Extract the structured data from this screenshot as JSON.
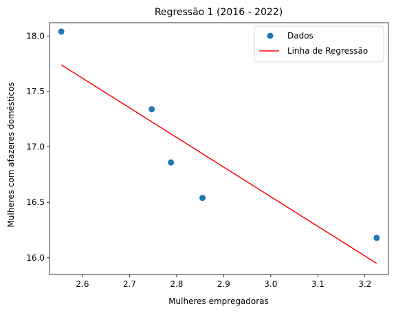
{
  "chart_data": {
    "type": "scatter",
    "title": "Regressão 1 (2016 - 2022)",
    "xlabel": "Mulheres empregadoras",
    "ylabel": "Mulheres com afazeres domésticos",
    "xlim": [
      2.53,
      3.25
    ],
    "ylim": [
      15.85,
      18.12
    ],
    "xticks": [
      2.6,
      2.7,
      2.8,
      2.9,
      3.0,
      3.1,
      3.2
    ],
    "xtick_labels": [
      "2.6",
      "2.7",
      "2.8",
      "2.9",
      "3.0",
      "3.1",
      "3.2"
    ],
    "yticks": [
      16.0,
      16.5,
      17.0,
      17.5,
      18.0
    ],
    "ytick_labels": [
      "16.0",
      "16.5",
      "17.0",
      "17.5",
      "18.0"
    ],
    "grid": false,
    "legend_position": "top-right",
    "series": [
      {
        "name": "Dados",
        "kind": "scatter",
        "color": "#1f77b4",
        "points": [
          {
            "x": 2.555,
            "y": 18.04
          },
          {
            "x": 2.747,
            "y": 17.34
          },
          {
            "x": 2.788,
            "y": 16.86
          },
          {
            "x": 2.855,
            "y": 16.54
          },
          {
            "x": 3.225,
            "y": 16.18
          }
        ]
      },
      {
        "name": "Linha de Regressão",
        "kind": "line",
        "color": "#ff0000",
        "points": [
          {
            "x": 2.555,
            "y": 17.74
          },
          {
            "x": 3.225,
            "y": 15.95
          }
        ]
      }
    ]
  }
}
